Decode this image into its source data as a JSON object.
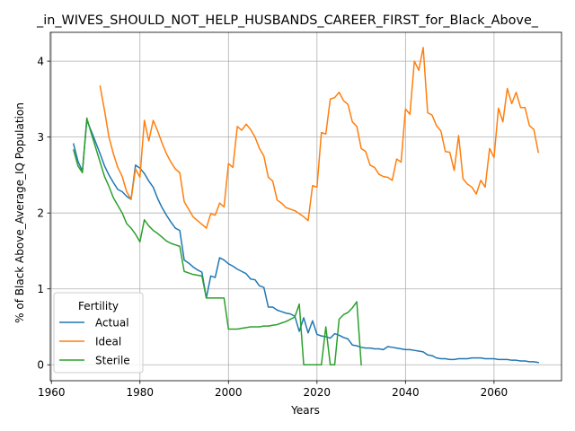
{
  "chart_data": {
    "type": "line",
    "title": "_in_WIVES_SHOULD_NOT_HELP_HUSBANDS_CAREER_FIRST_for_Black_Above_",
    "xlabel": "Years",
    "ylabel": "% of Black Above_Average_IQ Population",
    "xlim": [
      1959.75,
      2075.25
    ],
    "ylim": [
      -0.21,
      4.38
    ],
    "xticks": [
      1960,
      1980,
      2000,
      2020,
      2040,
      2060
    ],
    "yticks": [
      0,
      1,
      2,
      3,
      4
    ],
    "grid": true,
    "legend": {
      "title": "Fertility",
      "placement": "lower-left"
    },
    "series": [
      {
        "name": "Actual",
        "color": "#1f77b4",
        "points": [
          [
            1965,
            2.91
          ],
          [
            1966,
            2.68
          ],
          [
            1967,
            2.55
          ],
          [
            1968,
            3.22
          ],
          [
            1969,
            3.08
          ],
          [
            1970,
            2.93
          ],
          [
            1971,
            2.78
          ],
          [
            1972,
            2.62
          ],
          [
            1973,
            2.5
          ],
          [
            1974,
            2.4
          ],
          [
            1975,
            2.31
          ],
          [
            1976,
            2.28
          ],
          [
            1977,
            2.22
          ],
          [
            1978,
            2.18
          ],
          [
            1979,
            2.63
          ],
          [
            1980,
            2.59
          ],
          [
            1981,
            2.52
          ],
          [
            1982,
            2.42
          ],
          [
            1983,
            2.34
          ],
          [
            1984,
            2.19
          ],
          [
            1985,
            2.07
          ],
          [
            1986,
            1.97
          ],
          [
            1987,
            1.88
          ],
          [
            1988,
            1.8
          ],
          [
            1989,
            1.77
          ],
          [
            1990,
            1.38
          ],
          [
            1991,
            1.34
          ],
          [
            1992,
            1.29
          ],
          [
            1993,
            1.25
          ],
          [
            1994,
            1.22
          ],
          [
            1995,
            0.88
          ],
          [
            1996,
            1.17
          ],
          [
            1997,
            1.15
          ],
          [
            1998,
            1.41
          ],
          [
            1999,
            1.38
          ],
          [
            2000,
            1.33
          ],
          [
            2001,
            1.3
          ],
          [
            2002,
            1.26
          ],
          [
            2003,
            1.23
          ],
          [
            2004,
            1.2
          ],
          [
            2005,
            1.13
          ],
          [
            2006,
            1.12
          ],
          [
            2007,
            1.04
          ],
          [
            2008,
            1.02
          ],
          [
            2009,
            0.76
          ],
          [
            2010,
            0.76
          ],
          [
            2011,
            0.72
          ],
          [
            2012,
            0.7
          ],
          [
            2013,
            0.68
          ],
          [
            2014,
            0.67
          ],
          [
            2015,
            0.64
          ],
          [
            2016,
            0.44
          ],
          [
            2017,
            0.62
          ],
          [
            2018,
            0.42
          ],
          [
            2019,
            0.58
          ],
          [
            2020,
            0.4
          ],
          [
            2021,
            0.38
          ],
          [
            2022,
            0.37
          ],
          [
            2023,
            0.35
          ],
          [
            2024,
            0.41
          ],
          [
            2025,
            0.39
          ],
          [
            2026,
            0.36
          ],
          [
            2027,
            0.34
          ],
          [
            2028,
            0.26
          ],
          [
            2029,
            0.25
          ],
          [
            2030,
            0.23
          ],
          [
            2031,
            0.22
          ],
          [
            2032,
            0.22
          ],
          [
            2033,
            0.21
          ],
          [
            2034,
            0.21
          ],
          [
            2035,
            0.2
          ],
          [
            2036,
            0.24
          ],
          [
            2037,
            0.23
          ],
          [
            2038,
            0.22
          ],
          [
            2039,
            0.21
          ],
          [
            2040,
            0.2
          ],
          [
            2041,
            0.2
          ],
          [
            2042,
            0.19
          ],
          [
            2043,
            0.18
          ],
          [
            2044,
            0.17
          ],
          [
            2045,
            0.13
          ],
          [
            2046,
            0.12
          ],
          [
            2047,
            0.09
          ],
          [
            2048,
            0.08
          ],
          [
            2049,
            0.08
          ],
          [
            2050,
            0.07
          ],
          [
            2051,
            0.07
          ],
          [
            2052,
            0.08
          ],
          [
            2053,
            0.08
          ],
          [
            2054,
            0.08
          ],
          [
            2055,
            0.09
          ],
          [
            2056,
            0.09
          ],
          [
            2057,
            0.09
          ],
          [
            2058,
            0.08
          ],
          [
            2059,
            0.08
          ],
          [
            2060,
            0.08
          ],
          [
            2061,
            0.07
          ],
          [
            2062,
            0.07
          ],
          [
            2063,
            0.07
          ],
          [
            2064,
            0.06
          ],
          [
            2065,
            0.06
          ],
          [
            2066,
            0.05
          ],
          [
            2067,
            0.05
          ],
          [
            2068,
            0.04
          ],
          [
            2069,
            0.04
          ],
          [
            2070,
            0.03
          ]
        ]
      },
      {
        "name": "Ideal",
        "color": "#ff7f0e",
        "points": [
          [
            1971,
            3.67
          ],
          [
            1972,
            3.35
          ],
          [
            1973,
            3.0
          ],
          [
            1974,
            2.78
          ],
          [
            1975,
            2.6
          ],
          [
            1976,
            2.48
          ],
          [
            1977,
            2.28
          ],
          [
            1978,
            2.18
          ],
          [
            1979,
            2.58
          ],
          [
            1980,
            2.47
          ],
          [
            1981,
            3.22
          ],
          [
            1982,
            2.95
          ],
          [
            1983,
            3.22
          ],
          [
            1984,
            3.08
          ],
          [
            1985,
            2.92
          ],
          [
            1986,
            2.78
          ],
          [
            1987,
            2.67
          ],
          [
            1988,
            2.58
          ],
          [
            1989,
            2.53
          ],
          [
            1990,
            2.15
          ],
          [
            1991,
            2.05
          ],
          [
            1992,
            1.95
          ],
          [
            1993,
            1.9
          ],
          [
            1994,
            1.85
          ],
          [
            1995,
            1.8
          ],
          [
            1996,
            1.99
          ],
          [
            1997,
            1.97
          ],
          [
            1998,
            2.13
          ],
          [
            1999,
            2.08
          ],
          [
            2000,
            2.65
          ],
          [
            2001,
            2.6
          ],
          [
            2002,
            3.14
          ],
          [
            2003,
            3.09
          ],
          [
            2004,
            3.17
          ],
          [
            2005,
            3.1
          ],
          [
            2006,
            3.0
          ],
          [
            2007,
            2.85
          ],
          [
            2008,
            2.75
          ],
          [
            2009,
            2.47
          ],
          [
            2010,
            2.42
          ],
          [
            2011,
            2.17
          ],
          [
            2012,
            2.13
          ],
          [
            2013,
            2.07
          ],
          [
            2014,
            2.05
          ],
          [
            2015,
            2.03
          ],
          [
            2016,
            1.99
          ],
          [
            2017,
            1.95
          ],
          [
            2018,
            1.9
          ],
          [
            2019,
            2.36
          ],
          [
            2020,
            2.34
          ],
          [
            2021,
            3.06
          ],
          [
            2022,
            3.04
          ],
          [
            2023,
            3.5
          ],
          [
            2024,
            3.52
          ],
          [
            2025,
            3.59
          ],
          [
            2026,
            3.48
          ],
          [
            2027,
            3.43
          ],
          [
            2028,
            3.2
          ],
          [
            2029,
            3.14
          ],
          [
            2030,
            2.85
          ],
          [
            2031,
            2.81
          ],
          [
            2032,
            2.63
          ],
          [
            2033,
            2.6
          ],
          [
            2034,
            2.51
          ],
          [
            2035,
            2.48
          ],
          [
            2036,
            2.47
          ],
          [
            2037,
            2.43
          ],
          [
            2038,
            2.71
          ],
          [
            2039,
            2.67
          ],
          [
            2040,
            3.37
          ],
          [
            2041,
            3.3
          ],
          [
            2042,
            4.0
          ],
          [
            2043,
            3.88
          ],
          [
            2044,
            4.18
          ],
          [
            2045,
            3.32
          ],
          [
            2046,
            3.29
          ],
          [
            2047,
            3.15
          ],
          [
            2048,
            3.08
          ],
          [
            2049,
            2.81
          ],
          [
            2050,
            2.8
          ],
          [
            2051,
            2.56
          ],
          [
            2052,
            3.02
          ],
          [
            2053,
            2.45
          ],
          [
            2054,
            2.38
          ],
          [
            2055,
            2.34
          ],
          [
            2056,
            2.25
          ],
          [
            2057,
            2.43
          ],
          [
            2058,
            2.34
          ],
          [
            2059,
            2.85
          ],
          [
            2060,
            2.73
          ],
          [
            2061,
            3.38
          ],
          [
            2062,
            3.2
          ],
          [
            2063,
            3.64
          ],
          [
            2064,
            3.44
          ],
          [
            2065,
            3.59
          ],
          [
            2066,
            3.39
          ],
          [
            2067,
            3.39
          ],
          [
            2068,
            3.15
          ],
          [
            2069,
            3.1
          ],
          [
            2070,
            2.8
          ]
        ]
      },
      {
        "name": "Sterile",
        "color": "#2ca02c",
        "points": [
          [
            1965,
            2.83
          ],
          [
            1966,
            2.62
          ],
          [
            1967,
            2.53
          ],
          [
            1968,
            3.25
          ],
          [
            1969,
            3.05
          ],
          [
            1970,
            2.86
          ],
          [
            1971,
            2.67
          ],
          [
            1972,
            2.48
          ],
          [
            1973,
            2.35
          ],
          [
            1974,
            2.2
          ],
          [
            1975,
            2.1
          ],
          [
            1976,
            2.0
          ],
          [
            1977,
            1.86
          ],
          [
            1978,
            1.8
          ],
          [
            1979,
            1.72
          ],
          [
            1980,
            1.62
          ],
          [
            1981,
            1.91
          ],
          [
            1982,
            1.83
          ],
          [
            1983,
            1.77
          ],
          [
            1984,
            1.73
          ],
          [
            1985,
            1.68
          ],
          [
            1986,
            1.63
          ],
          [
            1987,
            1.6
          ],
          [
            1988,
            1.58
          ],
          [
            1989,
            1.56
          ],
          [
            1990,
            1.23
          ],
          [
            1991,
            1.21
          ],
          [
            1992,
            1.19
          ],
          [
            1993,
            1.18
          ],
          [
            1994,
            1.17
          ],
          [
            1995,
            0.88
          ],
          [
            1996,
            0.88
          ],
          [
            1997,
            0.88
          ],
          [
            1998,
            0.88
          ],
          [
            1999,
            0.88
          ],
          [
            2000,
            0.47
          ],
          [
            2001,
            0.47
          ],
          [
            2002,
            0.47
          ],
          [
            2003,
            0.48
          ],
          [
            2004,
            0.49
          ],
          [
            2005,
            0.5
          ],
          [
            2006,
            0.5
          ],
          [
            2007,
            0.5
          ],
          [
            2008,
            0.51
          ],
          [
            2009,
            0.51
          ],
          [
            2010,
            0.52
          ],
          [
            2011,
            0.53
          ],
          [
            2012,
            0.55
          ],
          [
            2013,
            0.57
          ],
          [
            2014,
            0.6
          ],
          [
            2015,
            0.63
          ],
          [
            2016,
            0.8
          ],
          [
            2017,
            0.0
          ],
          [
            2018,
            0.0
          ],
          [
            2019,
            0.0
          ],
          [
            2020,
            0.0
          ],
          [
            2021,
            0.0
          ],
          [
            2022,
            0.5
          ],
          [
            2023,
            0.0
          ],
          [
            2024,
            0.0
          ],
          [
            2025,
            0.6
          ],
          [
            2026,
            0.66
          ],
          [
            2027,
            0.69
          ],
          [
            2028,
            0.75
          ],
          [
            2029,
            0.83
          ],
          [
            2030,
            0.0
          ]
        ]
      }
    ]
  }
}
